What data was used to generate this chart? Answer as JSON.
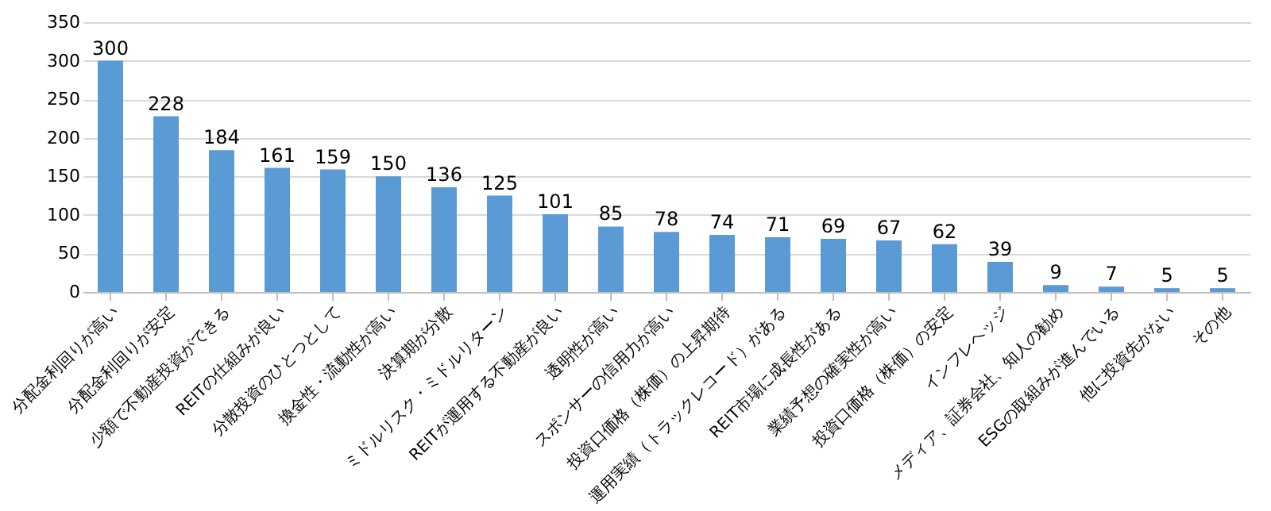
{
  "chart_data": {
    "type": "bar",
    "categories": [
      "分配金利回りが高い",
      "分配金利回りが安定",
      "少額で不動産投資ができる",
      "REITの仕組みが良い",
      "分散投資のひとつとして",
      "換金性・流動性が高い",
      "決算期が分散",
      "ミドルリスク・ミドルリターン",
      "REITが運用する不動産が良い",
      "透明性が高い",
      "スポンサーの信用力が高い",
      "投資口価格（株価）の上昇期待",
      "運用実績（トラックレコード）がある",
      "REIT市場に成長性がある",
      "業績予想の確実性が高い",
      "投資口価格（株価）の安定",
      "インフレヘッジ",
      "メディア、証券会社、知人の勧め",
      "ESGの取組みが進んでいる",
      "他に投資先がない",
      "その他"
    ],
    "values": [
      300,
      228,
      184,
      161,
      159,
      150,
      136,
      125,
      101,
      85,
      78,
      74,
      71,
      69,
      67,
      62,
      39,
      9,
      7,
      5,
      5
    ],
    "color": "#5b9bd5",
    "ylim": [
      0,
      350
    ],
    "yticks": [
      0,
      50,
      100,
      150,
      200,
      250,
      300,
      350
    ],
    "grid": "y",
    "data_labels": true
  }
}
